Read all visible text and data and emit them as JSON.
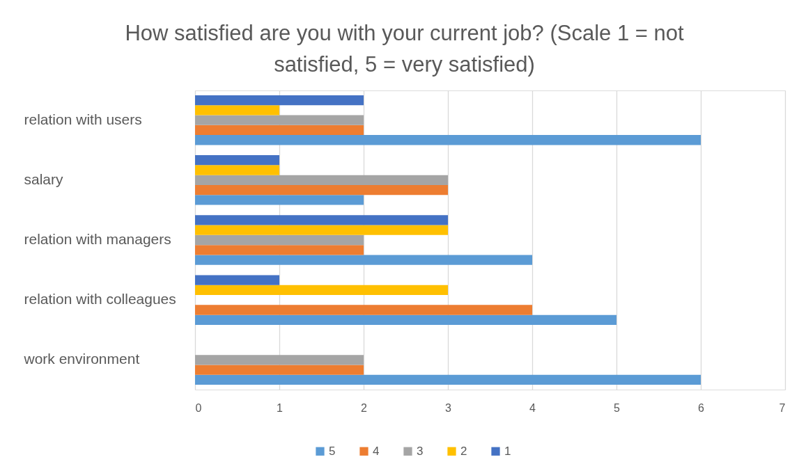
{
  "chart_data": {
    "type": "bar",
    "orientation": "horizontal",
    "title": "How satisfied are you with your current job? (Scale 1 = not satisfied, 5 = very satisfied)",
    "categories": [
      "relation with users",
      "salary",
      "relation with managers",
      "relation with colleagues",
      "work environment"
    ],
    "series": [
      {
        "name": "5",
        "color": "#5b9bd5",
        "values": [
          6,
          2,
          4,
          5,
          6
        ]
      },
      {
        "name": "4",
        "color": "#ed7d31",
        "values": [
          2,
          3,
          2,
          4,
          2
        ]
      },
      {
        "name": "3",
        "color": "#a5a5a5",
        "values": [
          2,
          3,
          2,
          null,
          2
        ]
      },
      {
        "name": "2",
        "color": "#ffc000",
        "values": [
          1,
          1,
          3,
          3,
          null
        ]
      },
      {
        "name": "1",
        "color": "#4472c4",
        "values": [
          2,
          1,
          3,
          1,
          null
        ]
      }
    ],
    "xlim": [
      0,
      7
    ],
    "xticks": [
      0,
      1,
      2,
      3,
      4,
      5,
      6,
      7
    ],
    "grid": "x",
    "legend": "bottom"
  }
}
